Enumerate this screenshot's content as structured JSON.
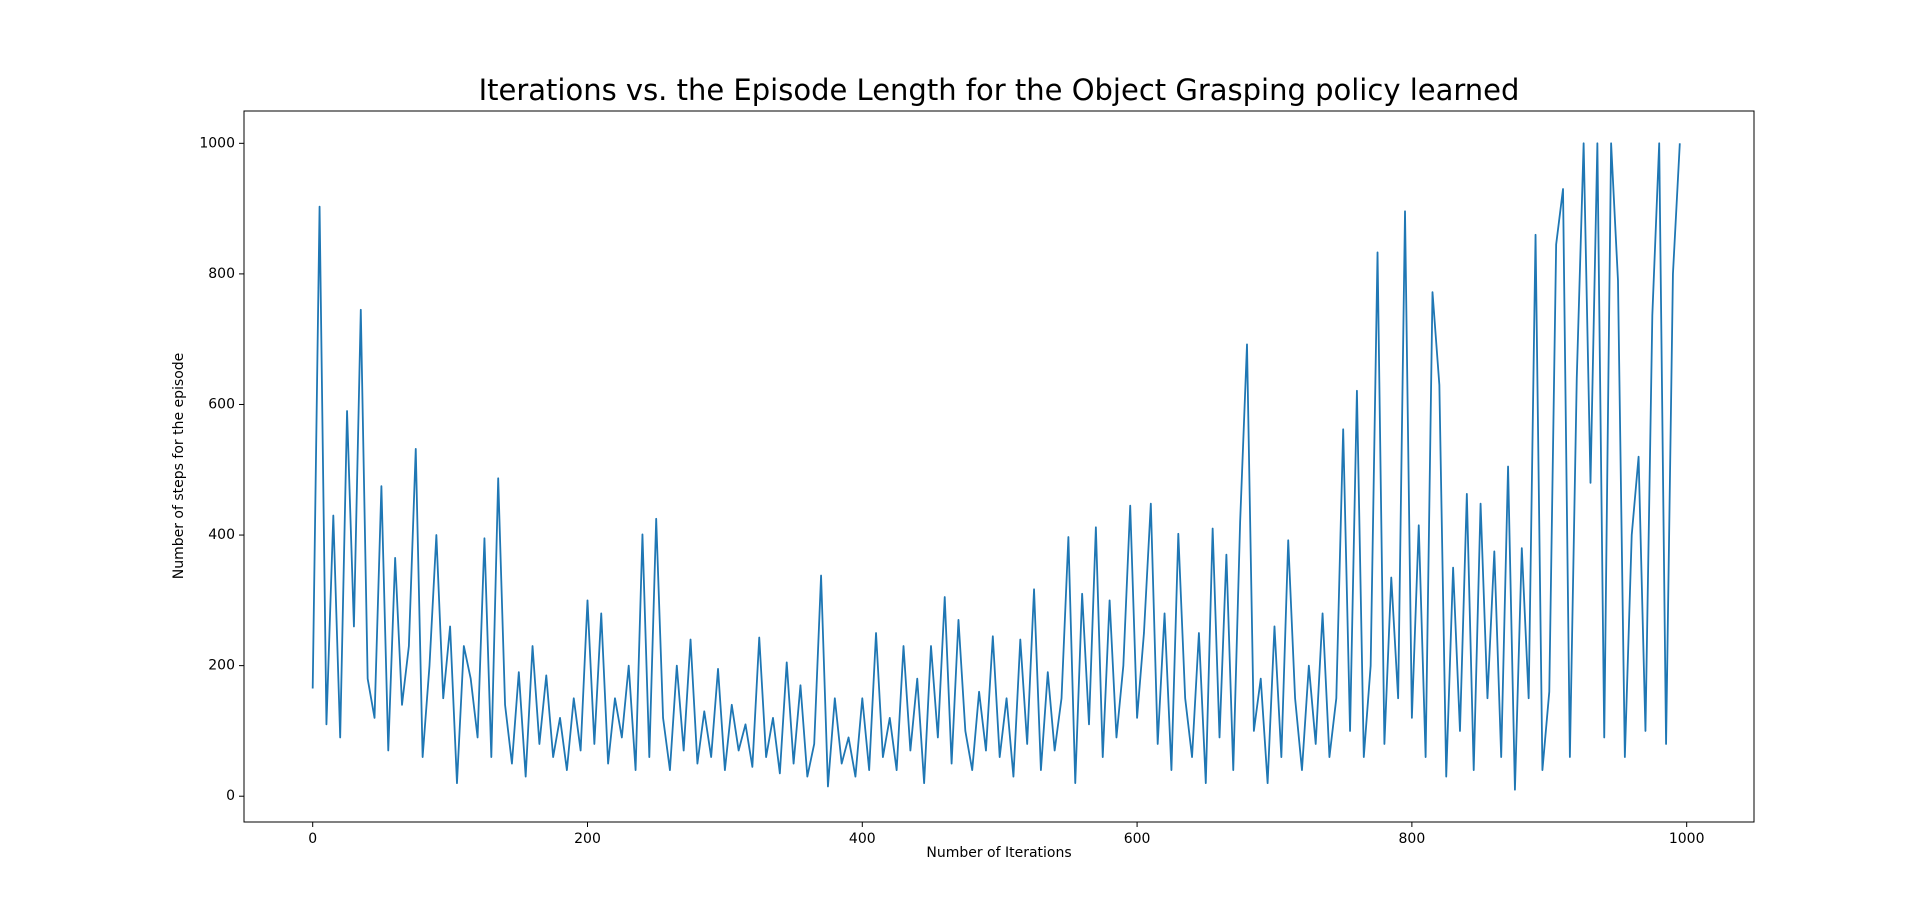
{
  "chart_data": {
    "type": "line",
    "title": "Iterations vs. the Episode Length for the Object Grasping policy learned",
    "x_label": "Number of Iterations",
    "y_label": "Number of steps for the episode",
    "color": "#1f77b4",
    "x": [
      0,
      5,
      10,
      15,
      20,
      25,
      30,
      35,
      40,
      45,
      50,
      55,
      60,
      65,
      70,
      75,
      80,
      85,
      90,
      95,
      100,
      105,
      110,
      115,
      120,
      125,
      130,
      135,
      140,
      145,
      150,
      155,
      160,
      165,
      170,
      175,
      180,
      185,
      190,
      195,
      200,
      205,
      210,
      215,
      220,
      225,
      230,
      235,
      240,
      245,
      250,
      255,
      260,
      265,
      270,
      275,
      280,
      285,
      290,
      295,
      300,
      305,
      310,
      315,
      320,
      325,
      330,
      335,
      340,
      345,
      350,
      355,
      360,
      365,
      370,
      375,
      380,
      385,
      390,
      395,
      400,
      405,
      410,
      415,
      420,
      425,
      430,
      435,
      440,
      445,
      450,
      455,
      460,
      465,
      470,
      475,
      480,
      485,
      490,
      495,
      500,
      505,
      510,
      515,
      520,
      525,
      530,
      535,
      540,
      545,
      550,
      555,
      560,
      565,
      570,
      575,
      580,
      585,
      590,
      595,
      600,
      605,
      610,
      615,
      620,
      625,
      630,
      635,
      640,
      645,
      650,
      655,
      660,
      665,
      670,
      675,
      680,
      685,
      690,
      695,
      700,
      705,
      710,
      715,
      720,
      725,
      730,
      735,
      740,
      745,
      750,
      755,
      760,
      765,
      770,
      775,
      780,
      785,
      790,
      795,
      800,
      805,
      810,
      815,
      820,
      825,
      830,
      835,
      840,
      845,
      850,
      855,
      860,
      865,
      870,
      875,
      880,
      885,
      890,
      895,
      900,
      905,
      910,
      915,
      920,
      925,
      930,
      935,
      940,
      945,
      950,
      955,
      960,
      965,
      970,
      975,
      980,
      985,
      990,
      995
    ],
    "values": [
      165,
      903,
      110,
      430,
      90,
      590,
      260,
      745,
      180,
      120,
      475,
      70,
      365,
      140,
      230,
      532,
      60,
      200,
      400,
      150,
      260,
      20,
      230,
      180,
      90,
      395,
      60,
      487,
      140,
      50,
      190,
      30,
      230,
      80,
      185,
      60,
      120,
      40,
      150,
      70,
      300,
      80,
      280,
      50,
      150,
      90,
      200,
      40,
      401,
      60,
      425,
      120,
      40,
      200,
      70,
      240,
      50,
      130,
      60,
      195,
      40,
      140,
      70,
      110,
      45,
      243,
      60,
      120,
      35,
      205,
      50,
      170,
      30,
      80,
      338,
      15,
      150,
      50,
      90,
      30,
      150,
      40,
      250,
      60,
      120,
      40,
      230,
      70,
      180,
      20,
      230,
      90,
      305,
      50,
      270,
      100,
      40,
      160,
      70,
      245,
      60,
      150,
      30,
      240,
      80,
      317,
      40,
      190,
      70,
      150,
      397,
      20,
      310,
      110,
      412,
      60,
      300,
      90,
      200,
      445,
      120,
      250,
      448,
      80,
      280,
      40,
      402,
      150,
      60,
      250,
      20,
      410,
      90,
      370,
      40,
      420,
      692,
      100,
      180,
      20,
      260,
      60,
      392,
      150,
      40,
      200,
      80,
      280,
      60,
      150,
      562,
      100,
      621,
      60,
      200,
      833,
      80,
      335,
      150,
      896,
      120,
      415,
      60,
      772,
      630,
      30,
      350,
      100,
      463,
      40,
      448,
      150,
      375,
      60,
      505,
      10,
      380,
      150,
      860,
      40,
      160,
      845,
      930,
      60,
      640,
      1000,
      480,
      1000,
      90,
      1000,
      790,
      60,
      400,
      520,
      100,
      737,
      1000,
      80,
      800,
      1000
    ],
    "xlim": [
      -50,
      1049
    ],
    "ylim": [
      -39.5,
      1049.5
    ],
    "xticks": [
      0,
      200,
      400,
      600,
      800,
      1000
    ],
    "yticks": [
      0,
      200,
      400,
      600,
      800,
      1000
    ]
  }
}
